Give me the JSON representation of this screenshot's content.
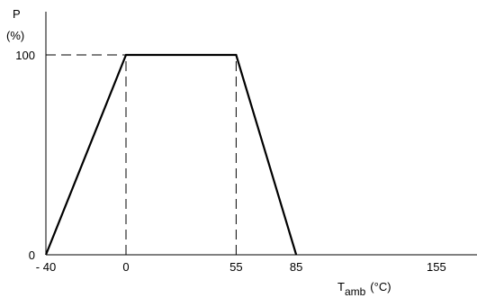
{
  "chart_data": {
    "type": "line",
    "ylabel": "P",
    "ylabel_unit": "(%)",
    "xlabel_main": "T",
    "xlabel_sub": "amb",
    "xlabel_unit": "(°C)",
    "xlim": [
      -40,
      155
    ],
    "ylim": [
      0,
      100
    ],
    "x_ticks": [
      -40,
      0,
      55,
      85,
      155
    ],
    "x_tick_labels": [
      "- 40",
      "0",
      "55",
      "85",
      "155"
    ],
    "y_ticks": [
      0,
      100
    ],
    "y_tick_labels": [
      "0",
      "100"
    ],
    "grid": false,
    "series": [
      {
        "x": [
          -40,
          0,
          55,
          85
        ],
        "y": [
          0,
          100,
          100,
          0
        ]
      }
    ],
    "reference_lines": [
      {
        "orientation": "horizontal",
        "value": 100,
        "style": "dashed",
        "from_x": -40,
        "to_x": 0
      },
      {
        "orientation": "vertical",
        "value": 0,
        "style": "dashed",
        "from_y": 0,
        "to_y": 100
      },
      {
        "orientation": "vertical",
        "value": 55,
        "style": "dashed",
        "from_y": 0,
        "to_y": 100
      }
    ],
    "colors": {
      "line": "#000000",
      "axis": "#000000",
      "dashed": "#000000"
    }
  }
}
